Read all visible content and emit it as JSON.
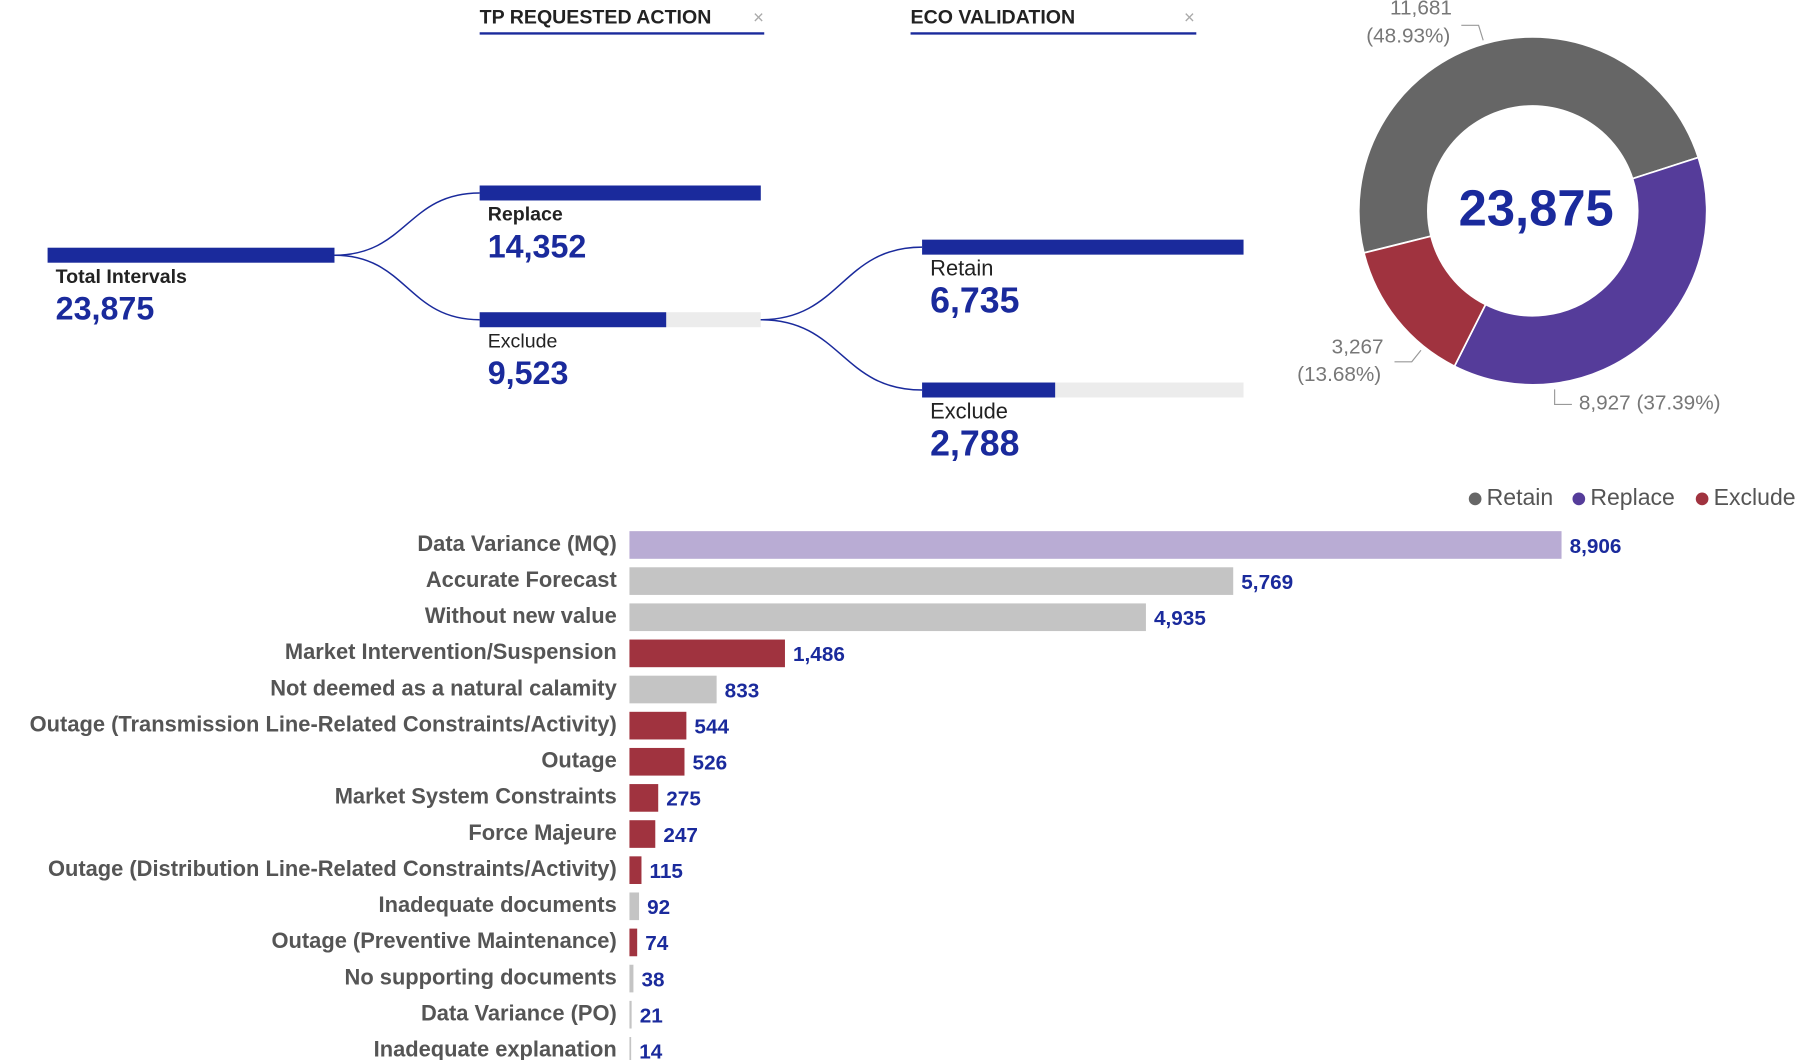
{
  "chart_data": [
    {
      "type": "tree",
      "headers": [
        "TP REQUESTED ACTION",
        "ECO VALIDATION"
      ],
      "color": "#1a2a9c",
      "root": {
        "label": "Total Intervals",
        "value": 23875,
        "value_label": "23,875",
        "children": [
          {
            "label": "Replace",
            "value": 14352,
            "value_label": "14,352"
          },
          {
            "label": "Exclude",
            "value": 9523,
            "value_label": "9,523",
            "children": [
              {
                "label": "Retain",
                "value": 6735,
                "value_label": "6,735"
              },
              {
                "label": "Exclude",
                "value": 2788,
                "value_label": "2,788"
              }
            ]
          }
        ]
      }
    },
    {
      "type": "donut",
      "total_label": "23,875",
      "categories": [
        "Retain",
        "Replace",
        "Exclude"
      ],
      "values": [
        11681,
        8927,
        3267
      ],
      "value_labels": [
        "11,681",
        "8,927",
        "3,267"
      ],
      "percent_labels": [
        "(48.93%)",
        "(37.39%)",
        "(13.68%)"
      ],
      "colors": [
        "#666666",
        "#553c9a",
        "#a0333f"
      ]
    },
    {
      "type": "hbar",
      "categories": [
        "Data Variance (MQ)",
        "Accurate Forecast",
        "Without new value",
        "Market Intervention/Suspension",
        "Not deemed as a natural calamity",
        "Outage (Transmission Line-Related Constraints/Activity)",
        "Outage",
        "Market System Constraints",
        "Force Majeure",
        "Outage (Distribution Line-Related Constraints/Activity)",
        "Inadequate documents",
        "Outage (Preventive Maintenance)",
        "No supporting documents",
        "Data Variance (PO)",
        "Inadequate explanation"
      ],
      "values": [
        8906,
        5769,
        4935,
        1486,
        833,
        544,
        526,
        275,
        247,
        115,
        92,
        74,
        38,
        21,
        14
      ],
      "value_labels": [
        "8,906",
        "5,769",
        "4,935",
        "1,486",
        "833",
        "544",
        "526",
        "275",
        "247",
        "115",
        "92",
        "74",
        "38",
        "21",
        "14"
      ],
      "colors": [
        "#b9acd4",
        "#c4c4c4",
        "#c4c4c4",
        "#a0333f",
        "#c4c4c4",
        "#a0333f",
        "#a0333f",
        "#a0333f",
        "#a0333f",
        "#a0333f",
        "#c4c4c4",
        "#a0333f",
        "#c4c4c4",
        "#c4c4c4",
        "#c4c4c4"
      ]
    }
  ]
}
